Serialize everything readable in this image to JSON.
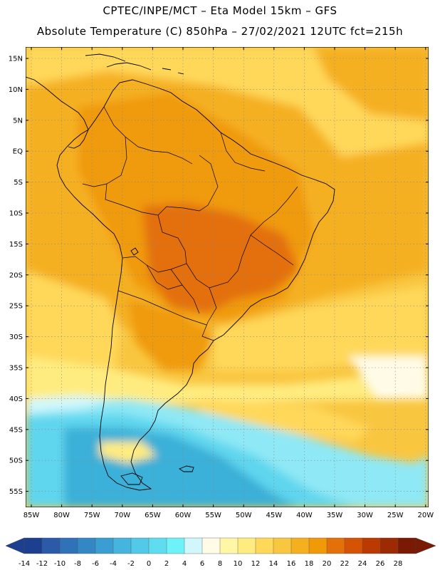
{
  "header": {
    "line1": "CPTEC/INPE/MCT –  Eta Model 15km – GFS",
    "line2": "Absolute Temperature (C) 850hPa – 27/02/2021 12UTC fct=215h"
  },
  "axes": {
    "lat_labels": [
      "15N",
      "10N",
      "5N",
      "EQ",
      "5S",
      "10S",
      "15S",
      "20S",
      "25S",
      "30S",
      "35S",
      "40S",
      "45S",
      "50S",
      "55S"
    ],
    "lon_labels": [
      "85W",
      "80W",
      "75W",
      "70W",
      "65W",
      "60W",
      "55W",
      "50W",
      "45W",
      "40W",
      "35W",
      "30W",
      "25W",
      "20W"
    ]
  },
  "colorbar": {
    "labels": [
      "-14",
      "-12",
      "-10",
      "-8",
      "-6",
      "-4",
      "-2",
      "0",
      "2",
      "4",
      "6",
      "8",
      "10",
      "12",
      "14",
      "16",
      "18",
      "20",
      "22",
      "24",
      "26",
      "28"
    ],
    "colors": [
      "#1c3f8f",
      "#2a5aa8",
      "#2f72b8",
      "#3387c4",
      "#3a9ed2",
      "#45b4de",
      "#52c9e8",
      "#5fddf0",
      "#6df2f7",
      "#d2f7fb",
      "#fffbe6",
      "#fff7a6",
      "#ffec80",
      "#ffd85a",
      "#f9c640",
      "#f5b020",
      "#f09a08",
      "#e37008",
      "#d45304",
      "#bb3a02",
      "#9c2a02",
      "#7a1a04"
    ]
  },
  "field_colors": {
    "cold_deep": "#3ab0d8",
    "cold": "#5fd6ee",
    "cool": "#8fe8f5",
    "mild": "#d2f7fb",
    "cream": "#fffbe6",
    "yellow": "#ffec80",
    "gold": "#ffd85a",
    "warm": "#f9c640",
    "orange": "#f5b020",
    "hot": "#f09a08",
    "hotter": "#e37008",
    "hottest": "#d45304"
  }
}
